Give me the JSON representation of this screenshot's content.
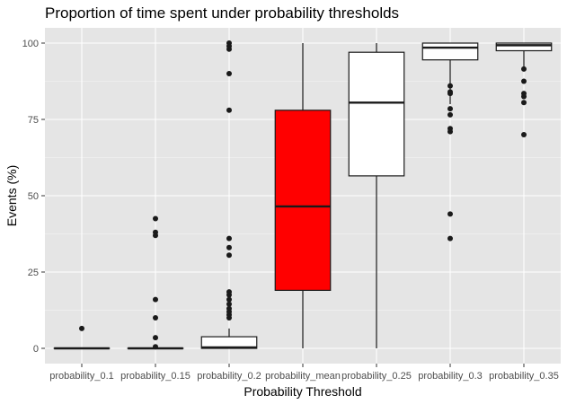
{
  "chart_data": {
    "type": "boxplot",
    "title": "Proportion of time spent under probability thresholds",
    "xlabel": "Probability Threshold",
    "ylabel": "Events (%)",
    "ylim": [
      -5,
      105
    ],
    "yticks": [
      0,
      25,
      50,
      75,
      100
    ],
    "grid": true,
    "legend": "none",
    "colors": {
      "panel": "#e5e5e5",
      "grid_major": "#ffffff",
      "box_default": "#ffffff",
      "box_highlight": "#ff0000",
      "stroke": "#1a1a1a",
      "outlier": "#1a1a1a"
    },
    "categories": [
      "probability_0.1",
      "probability_0.15",
      "probability_0.2",
      "probability_mean",
      "probability_0.25",
      "probability_0.3",
      "probability_0.35"
    ],
    "boxes": [
      {
        "category": "probability_0.1",
        "min": 0,
        "q1": 0,
        "median": 0,
        "q3": 0,
        "max": 0,
        "fill": "#ffffff",
        "outliers": [
          6.5
        ]
      },
      {
        "category": "probability_0.15",
        "min": 0,
        "q1": 0,
        "median": 0,
        "q3": 0,
        "max": 0,
        "fill": "#ffffff",
        "outliers": [
          42.5,
          38,
          37,
          16,
          10,
          3.5,
          0.5
        ]
      },
      {
        "category": "probability_0.2",
        "min": 0,
        "q1": 0,
        "median": 0.3,
        "q3": 3.8,
        "max": 6.5,
        "fill": "#ffffff",
        "outliers": [
          100,
          99,
          98,
          90,
          78,
          36,
          33,
          30.5,
          18.5,
          17.5,
          16,
          14.5,
          13,
          12,
          11,
          10
        ]
      },
      {
        "category": "probability_mean",
        "min": 0,
        "q1": 19,
        "median": 46.5,
        "q3": 78,
        "max": 100,
        "fill": "#ff0000",
        "outliers": []
      },
      {
        "category": "probability_0.25",
        "min": 0,
        "q1": 56.5,
        "median": 80.5,
        "q3": 97,
        "max": 100,
        "fill": "#ffffff",
        "outliers": []
      },
      {
        "category": "probability_0.3",
        "min": 80,
        "q1": 94.5,
        "median": 98.5,
        "q3": 100,
        "max": 100,
        "fill": "#ffffff",
        "outliers": [
          86,
          84,
          83.5,
          78.5,
          76.5,
          72,
          71,
          44,
          36
        ]
      },
      {
        "category": "probability_0.35",
        "min": 92,
        "q1": 97.5,
        "median": 99.3,
        "q3": 100,
        "max": 100,
        "fill": "#ffffff",
        "outliers": [
          91.5,
          87.5,
          83.5,
          82.5,
          80.5,
          70
        ]
      }
    ]
  }
}
